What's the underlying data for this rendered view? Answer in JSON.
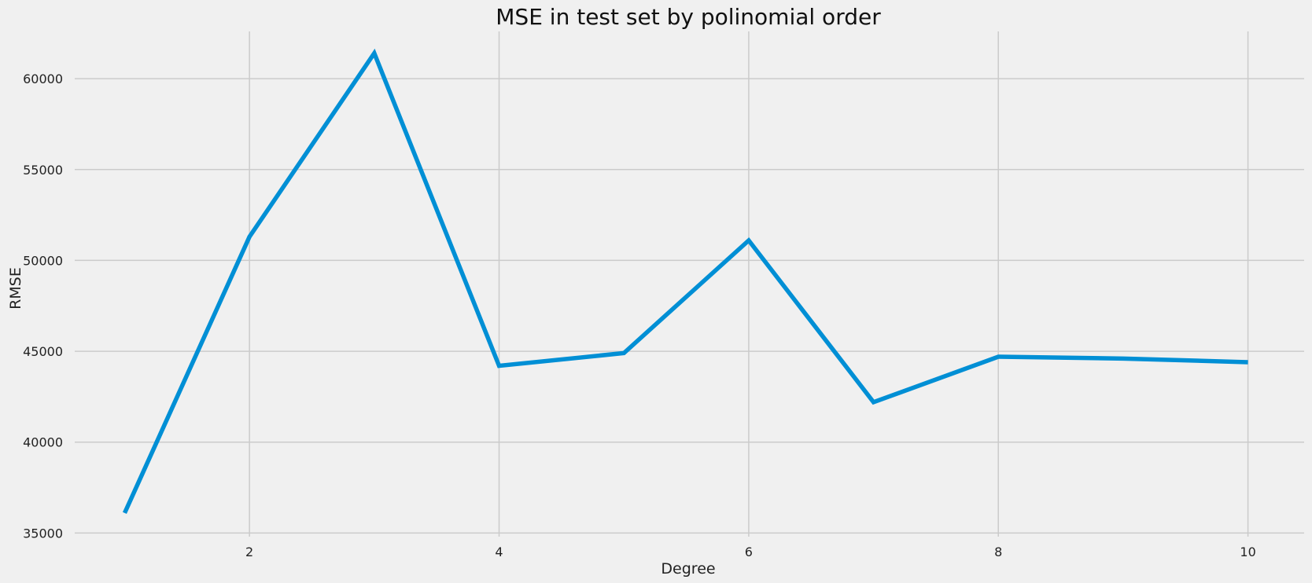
{
  "chart_data": {
    "type": "line",
    "title": "MSE in test set by polinomial order",
    "xlabel": "Degree",
    "ylabel": "RMSE",
    "xlim": [
      0.6,
      10.45
    ],
    "ylim": [
      34800,
      62600
    ],
    "xticks": [
      2,
      4,
      6,
      8,
      10
    ],
    "yticks": [
      35000,
      40000,
      45000,
      50000,
      55000,
      60000
    ],
    "grid": true,
    "series": [
      {
        "color": "#008fd5",
        "x": [
          1,
          2,
          3,
          4,
          5,
          6,
          7,
          8,
          9,
          10
        ],
        "y": [
          36100,
          51300,
          61400,
          44200,
          44900,
          51100,
          42200,
          44700,
          44600,
          44400
        ]
      }
    ]
  }
}
